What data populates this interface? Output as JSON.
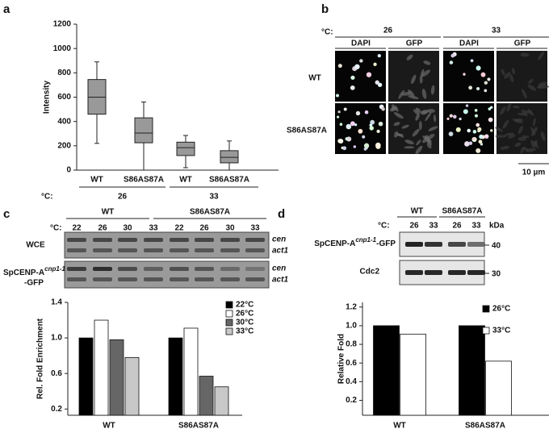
{
  "panel_labels": [
    "a",
    "b",
    "c",
    "d"
  ],
  "chart_data": [
    {
      "type": "box",
      "y_label": "Intensity",
      "categories": [
        "WT",
        "S86AS87A",
        "WT",
        "S86AS87A"
      ],
      "group_axis_label": "°C:",
      "groups": [
        "26",
        "33"
      ],
      "boxes": [
        {
          "min": 220,
          "q1": 460,
          "median": 600,
          "q3": 745,
          "max": 890
        },
        {
          "min": 0,
          "q1": 225,
          "median": 305,
          "q3": 430,
          "max": 560
        },
        {
          "min": 20,
          "q1": 120,
          "median": 185,
          "q3": 230,
          "max": 285
        },
        {
          "min": 0,
          "q1": 60,
          "median": 105,
          "q3": 160,
          "max": 240
        }
      ],
      "color": "#999999",
      "ylim": [
        0,
        1200
      ],
      "yticks": [
        0,
        200,
        400,
        600,
        800,
        1000,
        1200
      ]
    },
    {
      "type": "bar",
      "y_label": "Rel. Fold Enrichment",
      "categories": [
        "WT",
        "S86AS87A"
      ],
      "series": [
        {
          "name": "22°C",
          "color": "#000000",
          "values": [
            1.0,
            1.0
          ]
        },
        {
          "name": "26°C",
          "color": "#ffffff",
          "values": [
            1.2,
            1.11
          ]
        },
        {
          "name": "30°C",
          "color": "#666666",
          "values": [
            0.98,
            0.57
          ]
        },
        {
          "name": "33°C",
          "color": "#c8c8c8",
          "values": [
            0.78,
            0.45
          ]
        }
      ],
      "legend": "upper right",
      "ylim": [
        0.13,
        1.4
      ],
      "yticks": [
        0.2,
        0.6,
        {
          "value": 1.0,
          "label": "1.0"
        },
        1.4
      ]
    },
    {
      "type": "bar",
      "y_label": "Relative Fold",
      "categories": [
        "WT",
        "S86AS87A"
      ],
      "series": [
        {
          "name": "26°C",
          "color": "#000000",
          "values": [
            1.0,
            1.0
          ]
        },
        {
          "name": "33°C",
          "color": "#ffffff",
          "values": [
            0.91,
            0.62
          ]
        }
      ],
      "legend": "upper right",
      "ylim": [
        0.04,
        1.25
      ],
      "yticks": [
        0.2,
        0.4,
        0.6,
        0.8,
        {
          "value": 1.0,
          "label": "1.0"
        },
        1.2
      ]
    }
  ],
  "micrograph": {
    "temp_label": "°C:",
    "temps": [
      "26",
      "33"
    ],
    "channels": [
      "DAPI",
      "GFP",
      "DAPI",
      "GFP"
    ],
    "rows": [
      "WT",
      "S86AS87A"
    ],
    "scale_bar": "10 µm"
  },
  "gel": {
    "temp_label": "°C:",
    "temps": [
      "22",
      "26",
      "30",
      "33",
      "22",
      "26",
      "30",
      "33"
    ],
    "groups": [
      "WT",
      "S86AS87A"
    ],
    "band_labels": [
      "cen",
      "act1"
    ],
    "rows": [
      {
        "label": "WCE"
      },
      {
        "label": "SpCENP-A",
        "sup": "cnp1-1",
        "suffix": "-GFP"
      }
    ]
  },
  "blot": {
    "groups": [
      "WT",
      "S86AS87A"
    ],
    "temp_label": "°C:",
    "temps": [
      "26",
      "33",
      "26",
      "33"
    ],
    "unit": "kDa",
    "rows": [
      {
        "label": "SpCENP-A",
        "sup": "cnp1-1",
        "suffix": "-GFP",
        "marker": 40
      },
      {
        "label": "Cdc2",
        "marker": 30
      }
    ]
  }
}
